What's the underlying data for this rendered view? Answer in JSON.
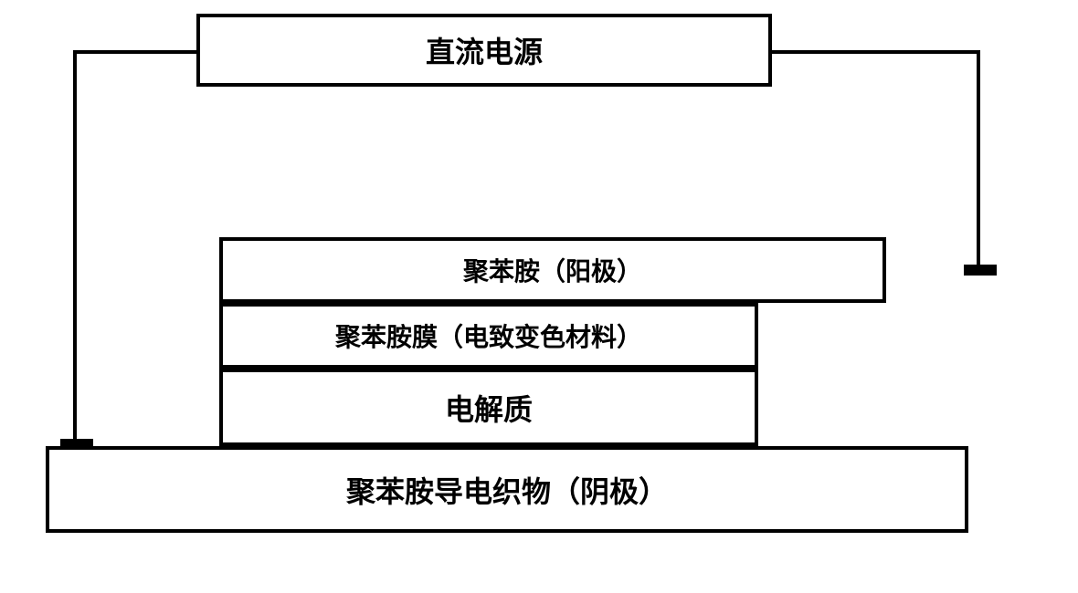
{
  "diagram": {
    "power_supply": {
      "label": "直流电源",
      "border_color": "#000000",
      "border_width": 4,
      "font_size": 32,
      "font_weight": "bold"
    },
    "anode": {
      "label": "聚苯胺（阳极）",
      "border_color": "#000000",
      "border_width": 4,
      "font_size": 28,
      "font_weight": "bold"
    },
    "film": {
      "label": "聚苯胺膜（电致变色材料）",
      "border_color": "#000000",
      "border_width": 4,
      "font_size": 28,
      "font_weight": "bold"
    },
    "electrolyte": {
      "label": "电解质",
      "border_color": "#000000",
      "border_width": 4,
      "font_size": 32,
      "font_weight": "bold"
    },
    "cathode": {
      "label": "聚苯胺导电织物（阴极）",
      "border_color": "#000000",
      "border_width": 4,
      "font_size": 32,
      "font_weight": "bold"
    },
    "wire_color": "#000000",
    "wire_width": 4,
    "background_color": "#ffffff",
    "terminal_color": "#000000"
  }
}
